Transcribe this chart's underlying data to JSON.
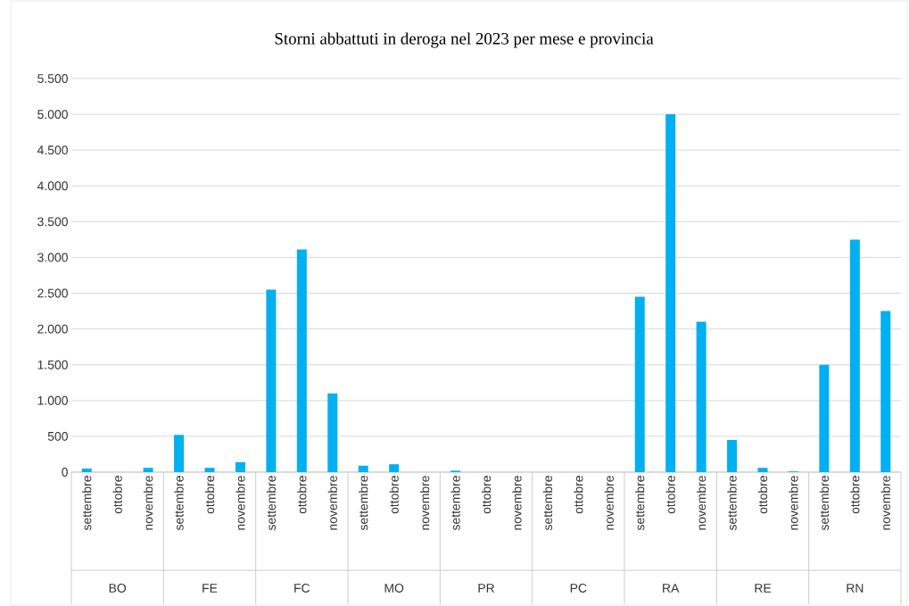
{
  "chart_data": {
    "type": "bar",
    "title": "Storni abbattuti in deroga nel 2023 per mese e provincia",
    "categories": [
      "settembre",
      "ottobre",
      "novembre",
      "settembre",
      "ottobre",
      "novembre",
      "settembre",
      "ottobre",
      "novembre",
      "settembre",
      "ottobre",
      "novembre",
      "settembre",
      "ottobre",
      "novembre",
      "settembre",
      "ottobre",
      "novembre",
      "settembre",
      "ottobre",
      "novembre",
      "settembre",
      "ottobre",
      "novembre",
      "settembre",
      "ottobre",
      "novembre"
    ],
    "values": [
      50,
      0,
      60,
      520,
      60,
      140,
      2550,
      3110,
      1100,
      90,
      110,
      0,
      20,
      0,
      0,
      0,
      0,
      0,
      2450,
      5000,
      2100,
      450,
      60,
      10,
      1500,
      3250,
      2250
    ],
    "color": "#00b0f0",
    "annotations": [
      "BO",
      "FE",
      "FC",
      "MO",
      "PR",
      "PC",
      "RA",
      "RE",
      "RN"
    ],
    "ylim": [
      0,
      5500
    ],
    "yticks": [
      {
        "value": 0,
        "label": "0"
      },
      {
        "value": 500,
        "label": "500"
      },
      {
        "value": 1000,
        "label": "1.000"
      },
      {
        "value": 1500,
        "label": "1.500"
      },
      {
        "value": 2000,
        "label": "2.000"
      },
      {
        "value": 2500,
        "label": "2.500"
      },
      {
        "value": 3000,
        "label": "3.000"
      },
      {
        "value": 3500,
        "label": "3.500"
      },
      {
        "value": 4000,
        "label": "4.000"
      },
      {
        "value": 4500,
        "label": "4.500"
      },
      {
        "value": 5000,
        "label": "5.000"
      },
      {
        "value": 5500,
        "label": "5.500"
      }
    ],
    "grid": true
  }
}
